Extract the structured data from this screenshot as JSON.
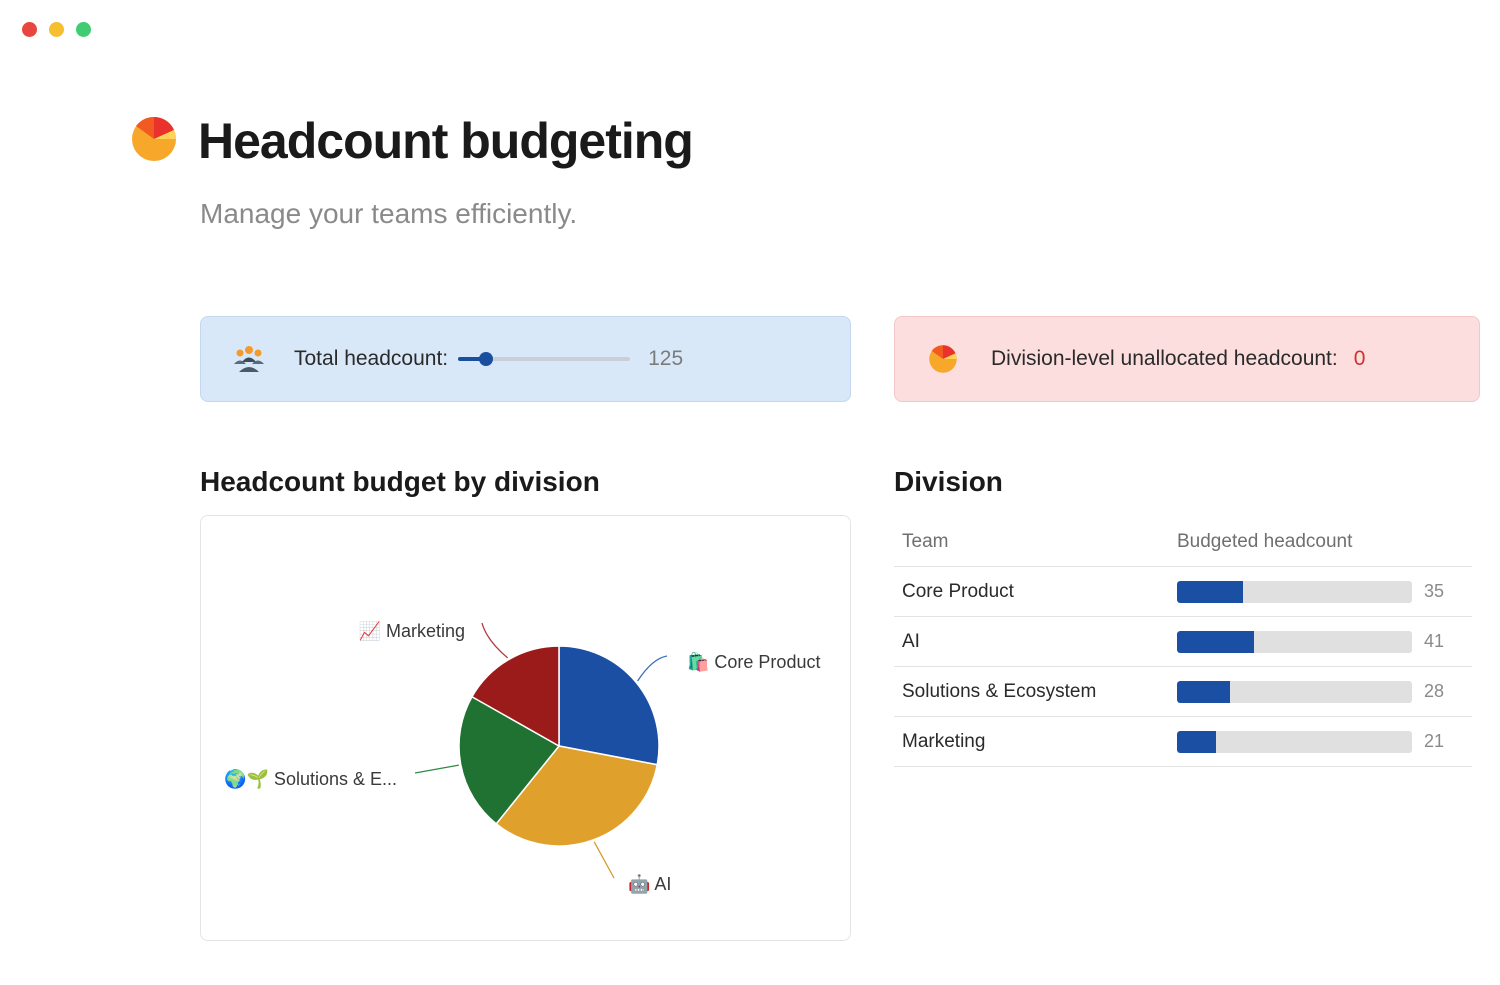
{
  "window": {
    "controls": [
      "close",
      "minimize",
      "maximize"
    ],
    "control_colors": [
      "#e8473f",
      "#f5bf2f",
      "#3fcc72"
    ]
  },
  "header": {
    "title": "Headcount budgeting",
    "icon": "pie-chart-icon",
    "subtitle": "Manage your teams efficiently."
  },
  "headcount_card": {
    "icon": "people-icon",
    "label": "Total headcount:",
    "value": "125",
    "slider_fraction": 0.16
  },
  "unallocated_card": {
    "icon": "pie-chart-icon",
    "label": "Division-level unallocated headcount:",
    "value": "0"
  },
  "chart_section": {
    "title": "Headcount budget by division"
  },
  "chart_data": {
    "type": "pie",
    "slices": [
      {
        "label": "🛍️ Core Product",
        "value": 35,
        "color": "#1b4fa3"
      },
      {
        "label": "🤖 AI",
        "value": 41,
        "color": "#e0a02c"
      },
      {
        "label": "🌍🌱 Solutions & E...",
        "value": 28,
        "color": "#1f7231"
      },
      {
        "label": "📈 Marketing",
        "value": 21,
        "color": "#9b1b1b"
      }
    ]
  },
  "table": {
    "title": "Division",
    "headers": {
      "team": "Team",
      "budget": "Budgeted headcount"
    },
    "max": 125,
    "rows": [
      {
        "team": "Core Product",
        "value": 35
      },
      {
        "team": "AI",
        "value": 41
      },
      {
        "team": "Solutions & Ecosystem",
        "value": 28
      },
      {
        "team": "Marketing",
        "value": 21
      }
    ]
  }
}
